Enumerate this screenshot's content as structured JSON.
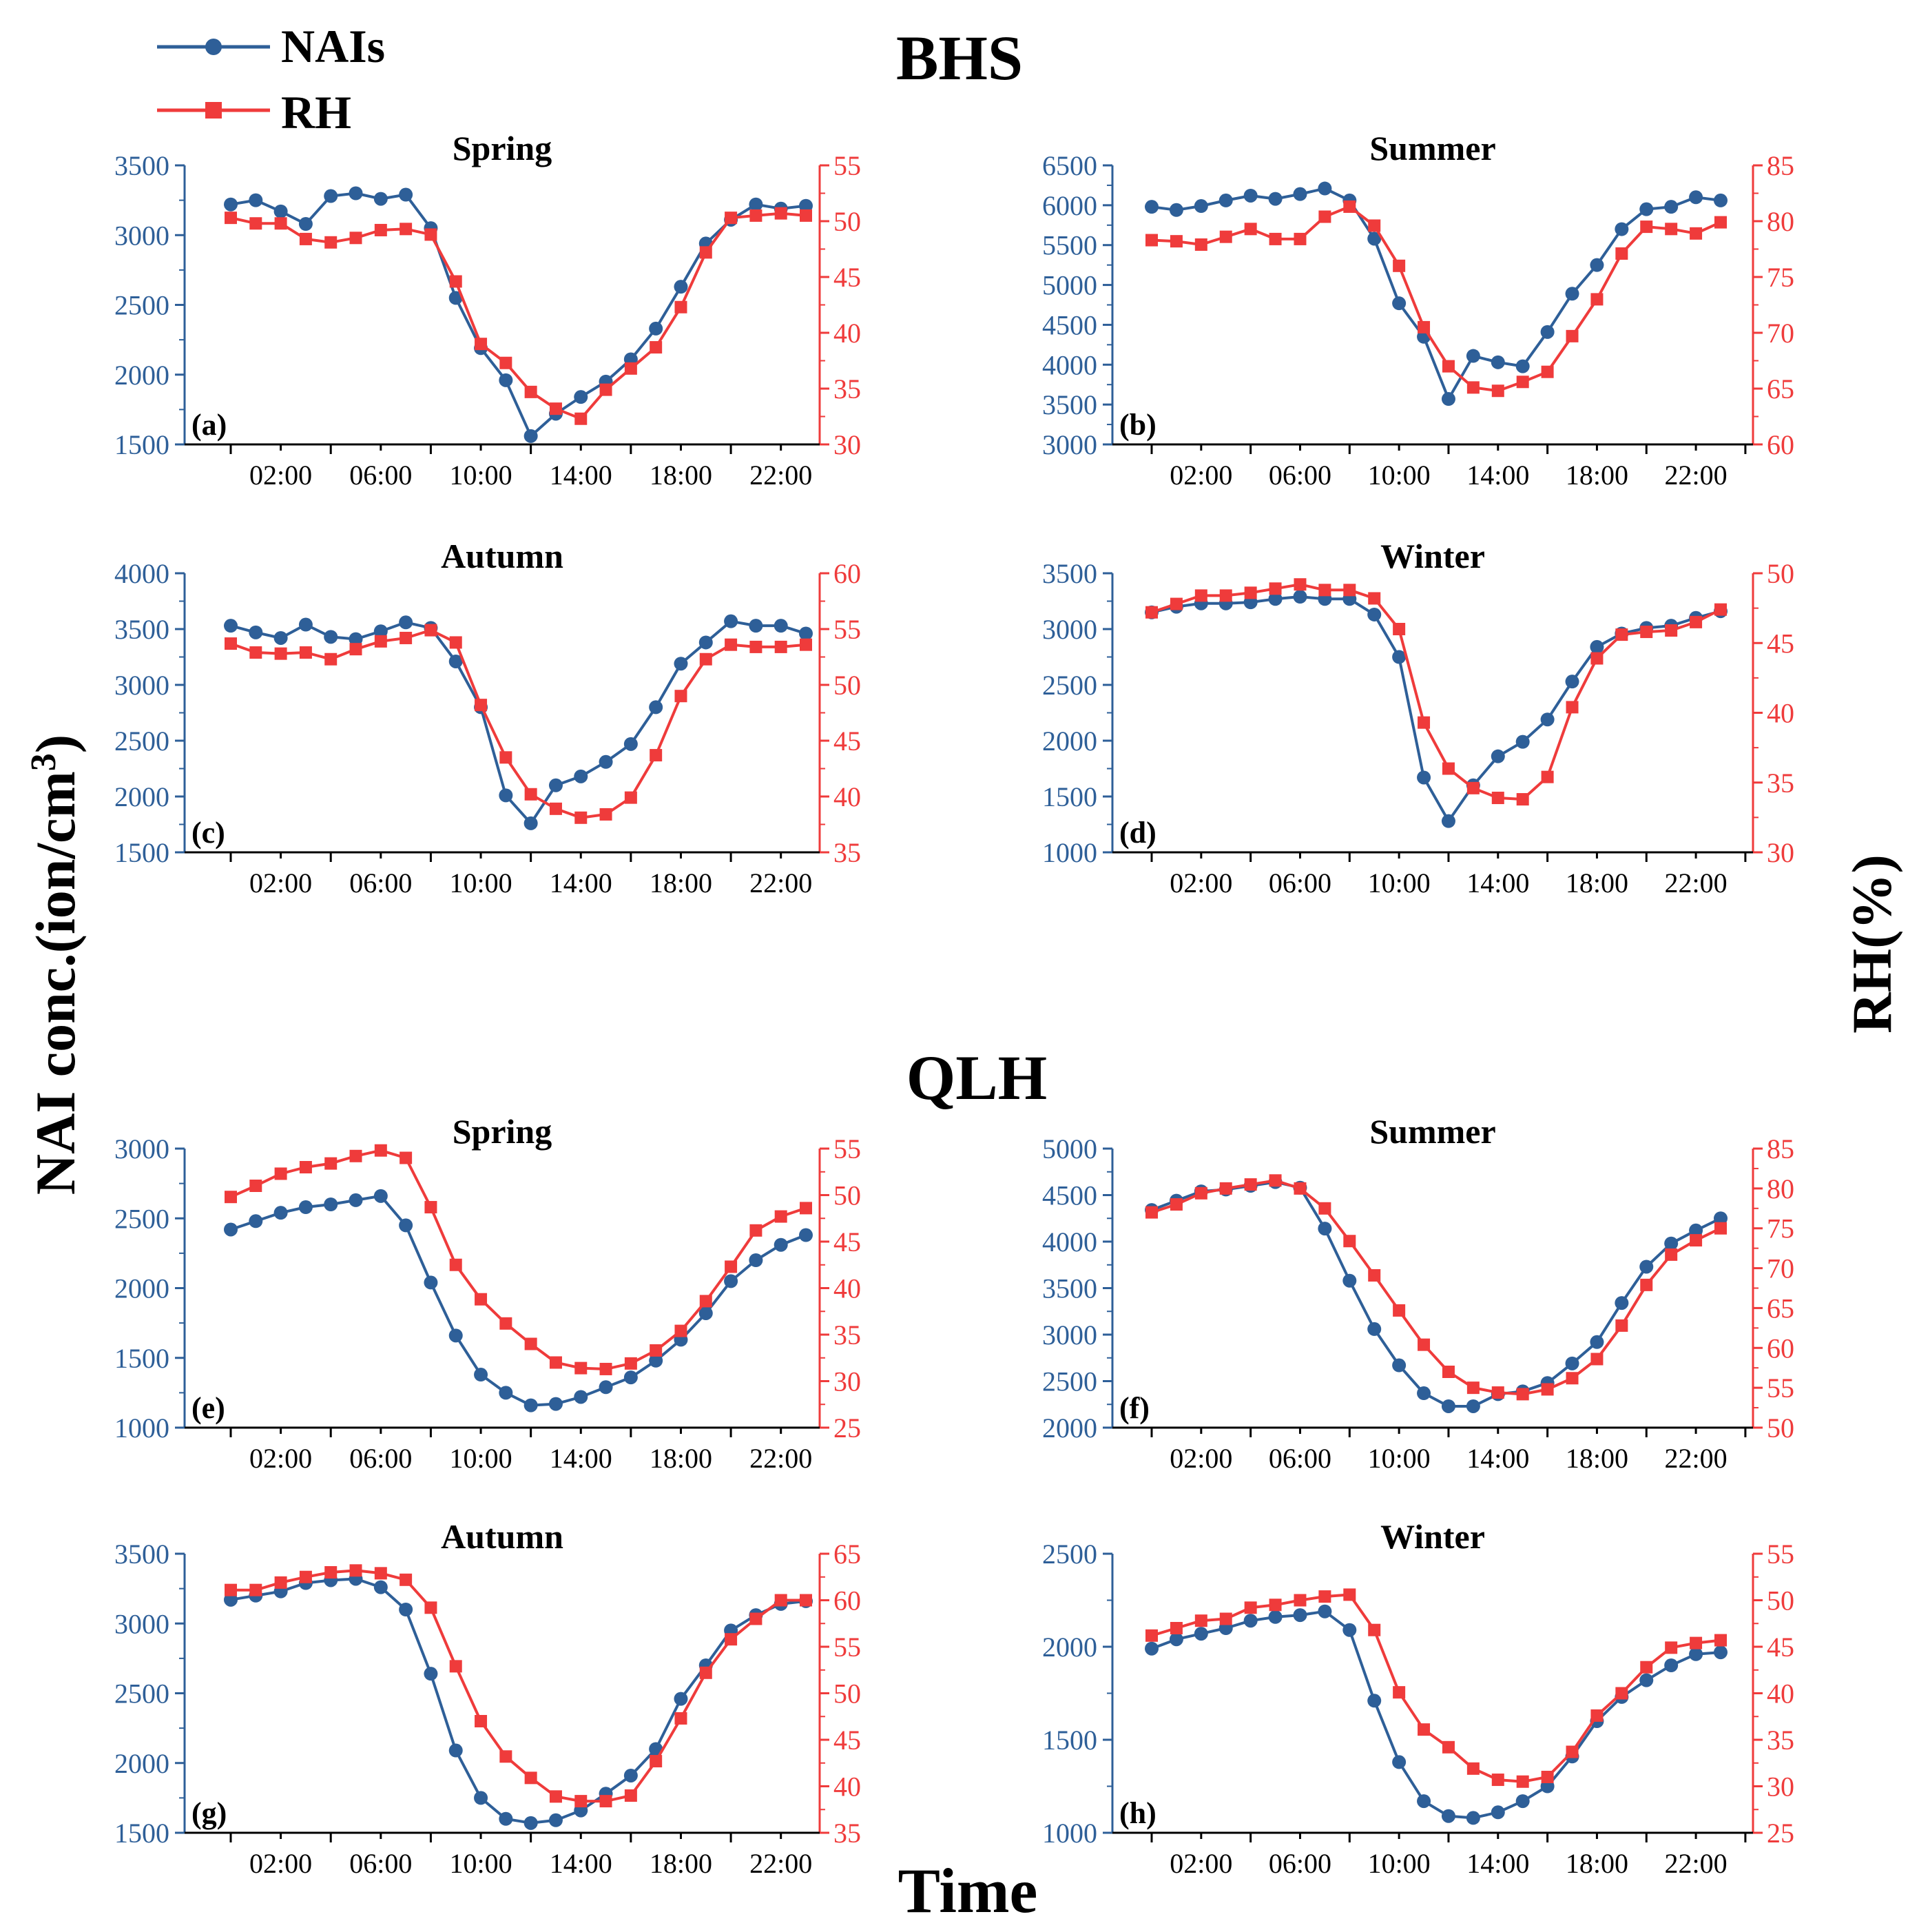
{
  "legend": {
    "items": [
      {
        "label": "NAIs",
        "color": "#2E5F98",
        "marker": "circle"
      },
      {
        "label": "RH",
        "color": "#EF3B3B",
        "marker": "square"
      }
    ]
  },
  "titles": {
    "top": "BHS",
    "bottom": "QLH"
  },
  "axis_labels": {
    "left": "NAI conc.(ion/cm³)",
    "right": "RH(%)",
    "bottom": "Time"
  },
  "colors": {
    "nai": "#2E5F98",
    "rh": "#EF3B3B",
    "axis": "#000000"
  },
  "x_ticks": [
    "02:00",
    "06:00",
    "10:00",
    "14:00",
    "18:00",
    "22:00"
  ],
  "x_tick_hours": [
    2,
    6,
    10,
    14,
    18,
    22
  ],
  "hours": [
    0,
    1,
    2,
    3,
    4,
    5,
    6,
    7,
    8,
    9,
    10,
    11,
    12,
    13,
    14,
    15,
    16,
    17,
    18,
    19,
    20,
    21,
    22,
    23
  ],
  "chart_data": [
    {
      "type": "line",
      "id": "a",
      "site": "BHS",
      "title": "Spring",
      "label": "(a)",
      "ylim": [
        1500,
        3500
      ],
      "yticks": [
        1500,
        2000,
        2500,
        3000,
        3500
      ],
      "y2lim": [
        30,
        55
      ],
      "y2ticks": [
        30,
        35,
        40,
        45,
        50,
        55
      ],
      "series": [
        {
          "name": "NAIs",
          "axis": "left",
          "values": [
            3220,
            3250,
            3170,
            3080,
            3280,
            3300,
            3260,
            3290,
            3050,
            2550,
            2190,
            1960,
            1560,
            1720,
            1840,
            1950,
            2110,
            2330,
            2630,
            2940,
            3110,
            3220,
            3190,
            3210
          ]
        },
        {
          "name": "RH",
          "axis": "right",
          "values": [
            50.3,
            49.8,
            49.8,
            48.4,
            48.1,
            48.5,
            49.2,
            49.3,
            48.8,
            44.6,
            39.0,
            37.3,
            34.7,
            33.2,
            32.3,
            34.9,
            36.8,
            38.7,
            42.3,
            47.2,
            50.3,
            50.5,
            50.7,
            50.5
          ]
        }
      ]
    },
    {
      "type": "line",
      "id": "b",
      "site": "BHS",
      "title": "Summer",
      "label": "(b)",
      "ylim": [
        3000,
        6500
      ],
      "yticks": [
        3000,
        3500,
        4000,
        4500,
        5000,
        5500,
        6000,
        6500
      ],
      "y2lim": [
        60,
        85
      ],
      "y2ticks": [
        60,
        65,
        70,
        75,
        80,
        85
      ],
      "series": [
        {
          "name": "NAIs",
          "axis": "left",
          "values": [
            5980,
            5940,
            5990,
            6060,
            6120,
            6080,
            6140,
            6210,
            6060,
            5580,
            4770,
            4350,
            3570,
            4110,
            4030,
            3980,
            4410,
            4890,
            5250,
            5700,
            5950,
            5980,
            6100,
            6060
          ]
        },
        {
          "name": "RH",
          "axis": "right",
          "values": [
            78.3,
            78.2,
            77.9,
            78.6,
            79.3,
            78.4,
            78.4,
            80.4,
            81.3,
            79.6,
            76.0,
            70.5,
            67.0,
            65.1,
            64.8,
            65.6,
            66.5,
            69.7,
            73.0,
            77.1,
            79.5,
            79.3,
            78.9,
            79.9
          ]
        }
      ]
    },
    {
      "type": "line",
      "id": "c",
      "site": "BHS",
      "title": "Autumn",
      "label": "(c)",
      "ylim": [
        1500,
        4000
      ],
      "yticks": [
        1500,
        2000,
        2500,
        3000,
        3500,
        4000
      ],
      "y2lim": [
        35,
        60
      ],
      "y2ticks": [
        35,
        40,
        45,
        50,
        55,
        60
      ],
      "series": [
        {
          "name": "NAIs",
          "axis": "left",
          "values": [
            3530,
            3470,
            3420,
            3540,
            3430,
            3410,
            3480,
            3560,
            3510,
            3210,
            2800,
            2010,
            1760,
            2100,
            2180,
            2310,
            2470,
            2800,
            3190,
            3380,
            3570,
            3530,
            3530,
            3460
          ]
        },
        {
          "name": "RH",
          "axis": "right",
          "values": [
            53.7,
            52.9,
            52.8,
            52.9,
            52.3,
            53.2,
            53.9,
            54.2,
            54.9,
            53.8,
            48.2,
            43.5,
            40.2,
            38.9,
            38.1,
            38.4,
            39.9,
            43.7,
            49.0,
            52.3,
            53.6,
            53.4,
            53.4,
            53.6
          ]
        }
      ]
    },
    {
      "type": "line",
      "id": "d",
      "site": "BHS",
      "title": "Winter",
      "label": "(d)",
      "ylim": [
        1000,
        3500
      ],
      "yticks": [
        1000,
        1500,
        2000,
        2500,
        3000,
        3500
      ],
      "y2lim": [
        30,
        50
      ],
      "y2ticks": [
        30,
        35,
        40,
        45,
        50
      ],
      "series": [
        {
          "name": "NAIs",
          "axis": "left",
          "values": [
            3150,
            3200,
            3230,
            3230,
            3240,
            3270,
            3290,
            3270,
            3270,
            3130,
            2750,
            1670,
            1280,
            1600,
            1860,
            1990,
            2190,
            2530,
            2840,
            2960,
            3010,
            3030,
            3100,
            3160
          ]
        },
        {
          "name": "RH",
          "axis": "right",
          "values": [
            47.2,
            47.8,
            48.4,
            48.4,
            48.6,
            48.9,
            49.2,
            48.8,
            48.8,
            48.2,
            46.0,
            39.3,
            36.0,
            34.6,
            33.9,
            33.8,
            35.4,
            40.4,
            43.9,
            45.6,
            45.8,
            45.9,
            46.5,
            47.4
          ]
        }
      ]
    },
    {
      "type": "line",
      "id": "e",
      "site": "QLH",
      "title": "Spring",
      "label": "(e)",
      "ylim": [
        1000,
        3000
      ],
      "yticks": [
        1000,
        1500,
        2000,
        2500,
        3000
      ],
      "y2lim": [
        25,
        55
      ],
      "y2ticks": [
        25,
        30,
        35,
        40,
        45,
        50,
        55
      ],
      "series": [
        {
          "name": "NAIs",
          "axis": "left",
          "values": [
            2420,
            2480,
            2540,
            2580,
            2600,
            2630,
            2660,
            2450,
            2040,
            1660,
            1380,
            1250,
            1160,
            1170,
            1220,
            1290,
            1360,
            1480,
            1630,
            1820,
            2050,
            2200,
            2310,
            2380
          ]
        },
        {
          "name": "RH",
          "axis": "right",
          "values": [
            49.8,
            51.0,
            52.3,
            53.0,
            53.4,
            54.2,
            54.8,
            54.0,
            48.7,
            42.5,
            38.8,
            36.2,
            34.0,
            32.0,
            31.4,
            31.3,
            31.9,
            33.3,
            35.4,
            38.6,
            42.3,
            46.2,
            47.7,
            48.6
          ]
        }
      ]
    },
    {
      "type": "line",
      "id": "f",
      "site": "QLH",
      "title": "Summer",
      "label": "(f)",
      "ylim": [
        2000,
        5000
      ],
      "yticks": [
        2000,
        2500,
        3000,
        3500,
        4000,
        4500,
        5000
      ],
      "y2lim": [
        50,
        85
      ],
      "y2ticks": [
        50,
        55,
        60,
        65,
        70,
        75,
        80,
        85
      ],
      "series": [
        {
          "name": "NAIs",
          "axis": "left",
          "values": [
            4340,
            4440,
            4540,
            4560,
            4600,
            4640,
            4580,
            4140,
            3580,
            3060,
            2670,
            2370,
            2230,
            2230,
            2360,
            2390,
            2480,
            2690,
            2920,
            3340,
            3730,
            3980,
            4120,
            4250
          ]
        },
        {
          "name": "RH",
          "axis": "right",
          "values": [
            77.0,
            78.0,
            79.4,
            80.0,
            80.5,
            81.0,
            80.0,
            77.5,
            73.4,
            69.1,
            64.7,
            60.4,
            57.0,
            55.0,
            54.4,
            54.2,
            54.8,
            56.2,
            58.6,
            62.8,
            67.9,
            71.7,
            73.5,
            75.0
          ]
        }
      ]
    },
    {
      "type": "line",
      "id": "g",
      "site": "QLH",
      "title": "Autumn",
      "label": "(g)",
      "ylim": [
        1500,
        3500
      ],
      "yticks": [
        1500,
        2000,
        2500,
        3000,
        3500
      ],
      "y2lim": [
        35,
        65
      ],
      "y2ticks": [
        35,
        40,
        45,
        50,
        55,
        60,
        65
      ],
      "series": [
        {
          "name": "NAIs",
          "axis": "left",
          "values": [
            3170,
            3200,
            3230,
            3290,
            3310,
            3320,
            3260,
            3100,
            2640,
            2090,
            1750,
            1600,
            1570,
            1590,
            1660,
            1780,
            1910,
            2100,
            2460,
            2700,
            2950,
            3060,
            3140,
            3160
          ]
        },
        {
          "name": "RH",
          "axis": "right",
          "values": [
            61.1,
            61.1,
            61.9,
            62.5,
            63.0,
            63.2,
            62.9,
            62.2,
            59.2,
            52.9,
            47.0,
            43.2,
            40.9,
            38.9,
            38.4,
            38.4,
            39.0,
            42.7,
            47.3,
            52.2,
            55.8,
            58.0,
            60.0,
            60.0
          ]
        }
      ]
    },
    {
      "type": "line",
      "id": "h",
      "site": "QLH",
      "title": "Winter",
      "label": "(h)",
      "ylim": [
        1000,
        2500
      ],
      "yticks": [
        1000,
        1500,
        2000,
        2500
      ],
      "y2lim": [
        25,
        55
      ],
      "y2ticks": [
        25,
        30,
        35,
        40,
        45,
        50,
        55
      ],
      "series": [
        {
          "name": "NAIs",
          "axis": "left",
          "values": [
            1990,
            2040,
            2070,
            2100,
            2140,
            2160,
            2170,
            2190,
            2090,
            1710,
            1380,
            1170,
            1090,
            1080,
            1110,
            1170,
            1250,
            1410,
            1600,
            1730,
            1820,
            1900,
            1960,
            1970
          ]
        },
        {
          "name": "RH",
          "axis": "right",
          "values": [
            46.2,
            47.0,
            47.8,
            48.0,
            49.2,
            49.5,
            50.0,
            50.4,
            50.6,
            46.8,
            40.1,
            36.1,
            34.2,
            31.9,
            30.7,
            30.5,
            31.0,
            33.7,
            37.6,
            40.0,
            42.8,
            44.9,
            45.4,
            45.7
          ]
        }
      ]
    }
  ]
}
